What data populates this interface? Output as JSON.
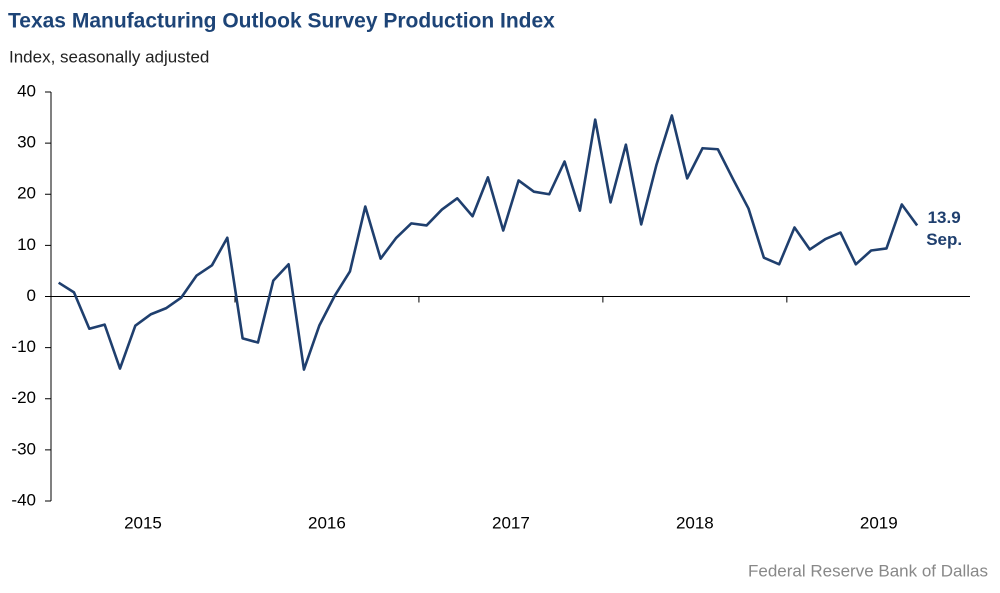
{
  "chart_data": {
    "type": "line",
    "title": "Texas Manufacturing Outlook Survey Production Index",
    "subtitle": "Index, seasonally adjusted",
    "source": "Federal Reserve Bank of Dallas",
    "annotation": "Sep.",
    "categories": [
      null,
      null,
      null,
      null,
      null,
      null,
      "2015",
      null,
      null,
      null,
      null,
      null,
      null,
      null,
      null,
      null,
      null,
      null,
      "2016",
      null,
      null,
      null,
      null,
      null,
      null,
      null,
      null,
      null,
      null,
      null,
      "2017",
      null,
      null,
      null,
      null,
      null,
      null,
      null,
      null,
      null,
      null,
      null,
      "2018",
      null,
      null,
      null,
      null,
      null,
      null,
      null,
      null,
      null,
      null,
      null,
      "2019",
      null,
      null
    ],
    "series": [
      {
        "name": "Production Index",
        "color": "#1f3f6e",
        "values": [
          2.7,
          0.8,
          -6.3,
          -5.5,
          -14.1,
          -5.7,
          -3.5,
          -2.3,
          -0.2,
          4.1,
          6.1,
          11.5,
          -8.2,
          -9.0,
          3.1,
          6.3,
          -14.3,
          -5.7,
          0.1,
          4.9,
          17.6,
          7.4,
          11.4,
          14.3,
          13.9,
          17.0,
          19.2,
          15.7,
          23.3,
          12.9,
          22.7,
          20.5,
          20.0,
          26.4,
          16.8,
          34.6,
          18.4,
          29.7,
          14.1,
          25.8,
          35.4,
          23.1,
          29.0,
          28.8,
          22.9,
          17.2,
          7.6,
          6.3,
          13.5,
          9.2,
          11.2,
          12.5,
          6.3,
          9.0,
          9.4,
          18.0,
          13.9
        ]
      }
    ],
    "ylim": [
      -40,
      40
    ],
    "yticks": [
      -40,
      -30,
      -20,
      -10,
      0,
      10,
      20,
      30,
      40
    ],
    "grid": false
  }
}
